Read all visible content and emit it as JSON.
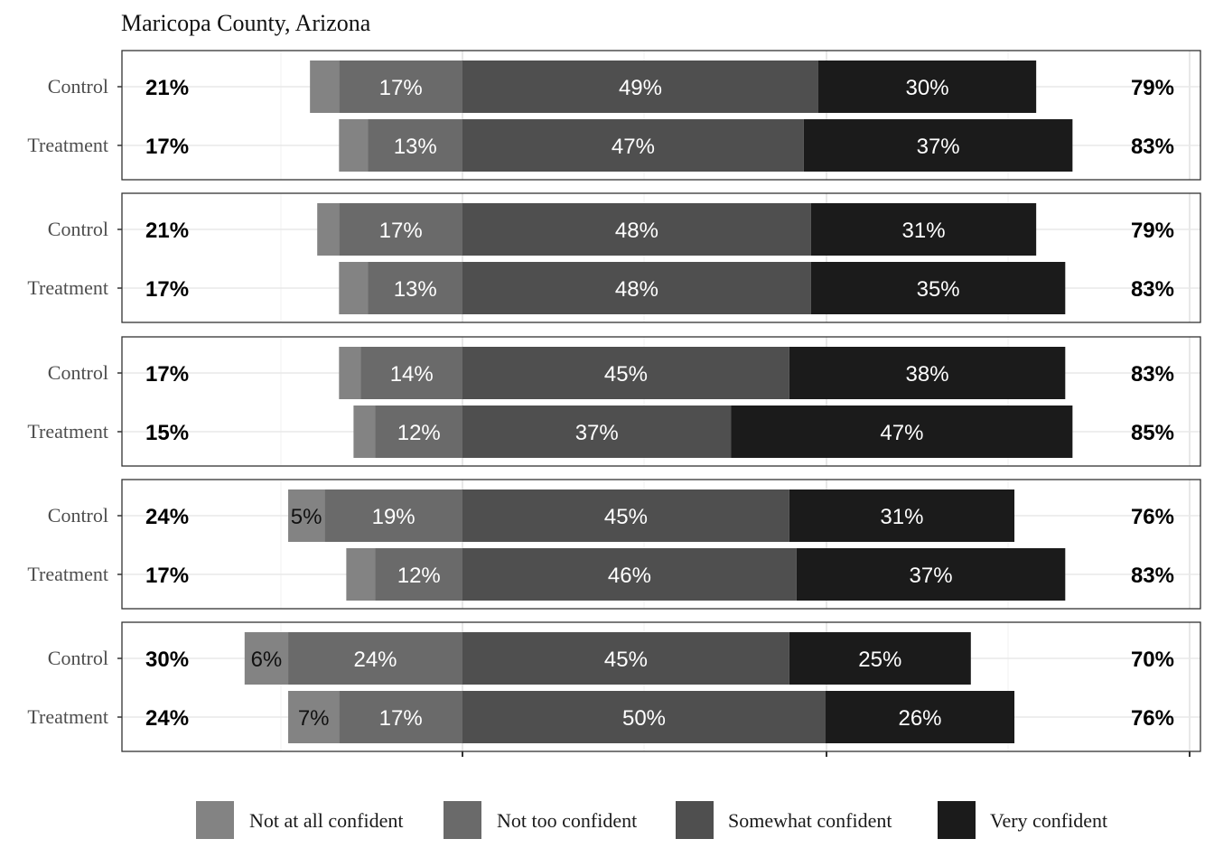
{
  "chart_data": {
    "type": "bar",
    "orientation": "horizontal",
    "stacked": "diverging",
    "title": "Maricopa County, Arizona",
    "xlabel": "",
    "ylabel": "",
    "x_scale": [
      -90,
      200
    ],
    "grid": true,
    "legend_position": "bottom",
    "categories": [
      "Not at all confident",
      "Not too confident",
      "Somewhat confident",
      "Very confident"
    ],
    "colors": {
      "Not at all confident": "#838383",
      "Not too confident": "#6a6a6a",
      "Somewhat confident": "#4f4f4f",
      "Very confident": "#1b1b1b"
    },
    "panels": [
      {
        "rows": [
          {
            "group": "Control",
            "values": [
              4,
              17,
              49,
              30
            ],
            "labels": [
              "",
              "17%",
              "49%",
              "30%"
            ],
            "left_total": "21%",
            "right_total": "79%"
          },
          {
            "group": "Treatment",
            "values": [
              4,
              13,
              47,
              37
            ],
            "labels": [
              "",
              "13%",
              "47%",
              "37%"
            ],
            "left_total": "17%",
            "right_total": "83%"
          }
        ]
      },
      {
        "rows": [
          {
            "group": "Control",
            "values": [
              3,
              17,
              48,
              31
            ],
            "labels": [
              "",
              "17%",
              "48%",
              "31%"
            ],
            "left_total": "21%",
            "right_total": "79%"
          },
          {
            "group": "Treatment",
            "values": [
              4,
              13,
              48,
              35
            ],
            "labels": [
              "",
              "13%",
              "48%",
              "35%"
            ],
            "left_total": "17%",
            "right_total": "83%"
          }
        ]
      },
      {
        "rows": [
          {
            "group": "Control",
            "values": [
              3,
              14,
              45,
              38
            ],
            "labels": [
              "",
              "14%",
              "45%",
              "38%"
            ],
            "left_total": "17%",
            "right_total": "83%"
          },
          {
            "group": "Treatment",
            "values": [
              3,
              12,
              37,
              47
            ],
            "labels": [
              "",
              "12%",
              "37%",
              "47%"
            ],
            "left_total": "15%",
            "right_total": "85%"
          }
        ]
      },
      {
        "rows": [
          {
            "group": "Control",
            "values": [
              5,
              19,
              45,
              31
            ],
            "labels": [
              "5%",
              "19%",
              "45%",
              "31%"
            ],
            "left_total": "24%",
            "right_total": "76%"
          },
          {
            "group": "Treatment",
            "values": [
              4,
              12,
              46,
              37
            ],
            "labels": [
              "",
              "12%",
              "46%",
              "37%"
            ],
            "left_total": "17%",
            "right_total": "83%"
          }
        ]
      },
      {
        "rows": [
          {
            "group": "Control",
            "values": [
              6,
              24,
              45,
              25
            ],
            "labels": [
              "6%",
              "24%",
              "45%",
              "25%"
            ],
            "left_total": "30%",
            "right_total": "70%"
          },
          {
            "group": "Treatment",
            "values": [
              7,
              17,
              50,
              26
            ],
            "labels": [
              "7%",
              "17%",
              "50%",
              "26%"
            ],
            "left_total": "24%",
            "right_total": "76%"
          }
        ]
      }
    ]
  }
}
